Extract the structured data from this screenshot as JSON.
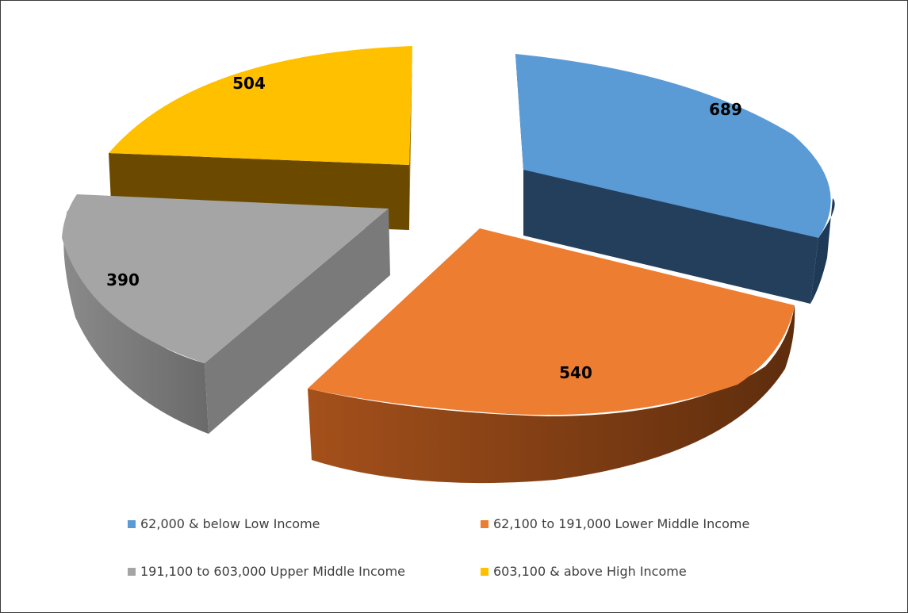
{
  "chart_data": {
    "type": "pie",
    "title": "",
    "categories": [
      "62,000 & below Low Income",
      "62,100 to 191,000 Lower Middle Income",
      "191,100 to 603,000 Upper Middle Income",
      "603,100 & above High Income"
    ],
    "values": [
      689,
      540,
      390,
      504
    ],
    "data_labels": [
      "689",
      "540",
      "390",
      "504"
    ],
    "colors": [
      "#5b9bd5",
      "#ed7d31",
      "#a5a5a5",
      "#ffc000"
    ],
    "style": "3d-exploded",
    "legend_position": "bottom"
  }
}
